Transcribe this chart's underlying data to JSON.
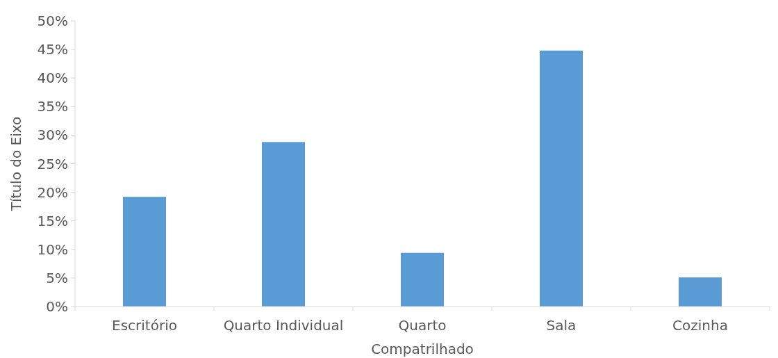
{
  "chart_data": {
    "type": "bar",
    "ylabel": "Título do Eixo",
    "categories": [
      "Escritório",
      "Quarto Individual",
      "Quarto Compatrilhado",
      "Sala",
      "Cozinha"
    ],
    "values": [
      19.2,
      28.8,
      9.4,
      44.8,
      5.1
    ],
    "color": "#5b9bd5",
    "ylim": [
      0,
      50
    ],
    "yticks": [
      {
        "value": 0,
        "label": "0%"
      },
      {
        "value": 5,
        "label": "5%"
      },
      {
        "value": 10,
        "label": "10%"
      },
      {
        "value": 15,
        "label": "15%"
      },
      {
        "value": 20,
        "label": "20%"
      },
      {
        "value": 25,
        "label": "25%"
      },
      {
        "value": 30,
        "label": "30%"
      },
      {
        "value": 35,
        "label": "35%"
      },
      {
        "value": 40,
        "label": "40%"
      },
      {
        "value": 45,
        "label": "45%"
      },
      {
        "value": 50,
        "label": "50%"
      }
    ],
    "grid": false
  }
}
